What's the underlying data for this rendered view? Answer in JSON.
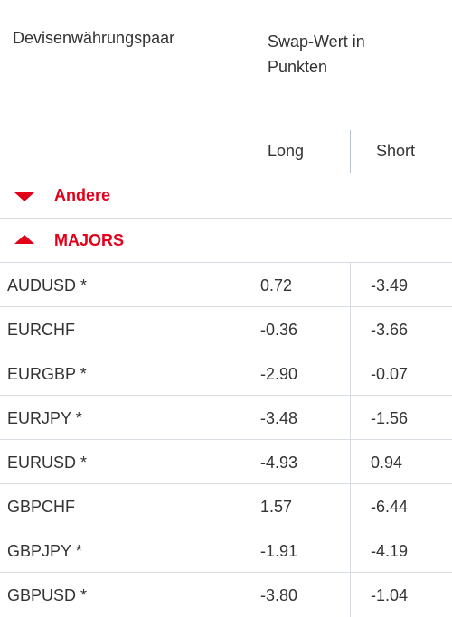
{
  "header": {
    "pair_label": "Devisenwährungspaar",
    "swap_label": "Swap-Wert in Punkten",
    "long_label": "Long",
    "short_label": "Short"
  },
  "groups": {
    "andere": {
      "label": "Andere",
      "state": "collapsed"
    },
    "majors": {
      "label": "MAJORS",
      "state": "expanded"
    }
  },
  "accent_color": "#e2001a",
  "rows": [
    {
      "pair": "AUDUSD *",
      "long": "0.72",
      "short": "-3.49"
    },
    {
      "pair": "EURCHF",
      "long": "-0.36",
      "short": "-3.66"
    },
    {
      "pair": "EURGBP *",
      "long": "-2.90",
      "short": "-0.07"
    },
    {
      "pair": "EURJPY *",
      "long": "-3.48",
      "short": "-1.56"
    },
    {
      "pair": "EURUSD *",
      "long": "-4.93",
      "short": "0.94"
    },
    {
      "pair": "GBPCHF",
      "long": "1.57",
      "short": "-6.44"
    },
    {
      "pair": "GBPJPY *",
      "long": "-1.91",
      "short": "-4.19"
    },
    {
      "pair": "GBPUSD *",
      "long": "-3.80",
      "short": "-1.04"
    }
  ]
}
